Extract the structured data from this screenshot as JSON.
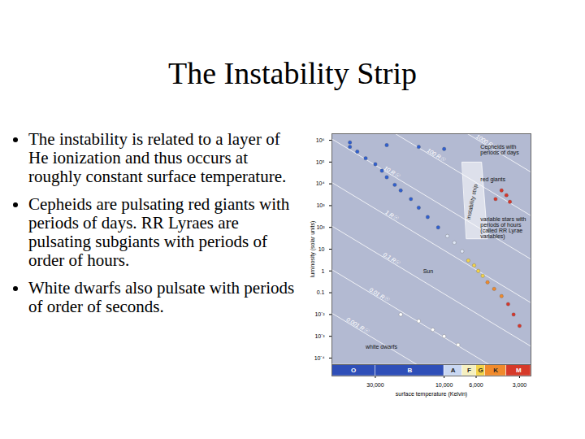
{
  "slide": {
    "title": "The Instability Strip",
    "bullets": [
      "The instability is related to a layer of He ionization and thus occurs at roughly constant surface temperature.",
      "Cepheids are pulsating red giants with periods of days. RR Lyraes are pulsating subgiants with periods of order of hours.",
      "White dwarfs also pulsate with periods of order of seconds."
    ]
  },
  "chart_data": {
    "type": "scatter",
    "log": true,
    "x_label": "surface temperature (Kelvin)",
    "y_label": "luminosity (solar units)",
    "xlim": [
      60000,
      2500
    ],
    "xticks": [
      {
        "value": 30000,
        "label": "30,000"
      },
      {
        "value": 10000,
        "label": "10,000"
      },
      {
        "value": 6000,
        "label": "6,000"
      },
      {
        "value": 3000,
        "label": "3,000"
      }
    ],
    "ylim": [
      5e-05,
      2000000
    ],
    "yticks": [
      {
        "value": 1000000,
        "label": "10⁶"
      },
      {
        "value": 100000,
        "label": "10⁵"
      },
      {
        "value": 10000,
        "label": "10⁴"
      },
      {
        "value": 1000,
        "label": "10³"
      },
      {
        "value": 100,
        "label": "10²"
      },
      10,
      1,
      0.1,
      {
        "value": 0.01,
        "label": "10⁻²"
      },
      {
        "value": 0.001,
        "label": "10⁻³"
      },
      {
        "value": 0.0001,
        "label": "10⁻⁴"
      }
    ],
    "series": [
      {
        "color": "#2f5fd0",
        "x": [
          45000,
          40000,
          35000,
          30000,
          27000,
          25000,
          22000,
          20000,
          17000,
          15000,
          13000,
          11000,
          45000,
          25000,
          15000,
          10000
        ],
        "values": [
          500000,
          300000,
          150000,
          80000,
          40000,
          20000,
          9000,
          5000,
          2000,
          800,
          300,
          100,
          800000,
          600000,
          500000,
          400000
        ]
      },
      {
        "color": "#dfe7f7",
        "x": [
          9500,
          8500,
          7500
        ],
        "values": [
          40,
          20,
          8
        ]
      },
      {
        "color": "#f3d34a",
        "x": [
          6800,
          6200,
          5800,
          5400
        ],
        "values": [
          3,
          1.8,
          1,
          0.6
        ]
      },
      {
        "color": "#f08a2c",
        "x": [
          5000,
          4500,
          4000
        ],
        "values": [
          0.3,
          0.15,
          0.07
        ]
      },
      {
        "color": "#d8352a",
        "x": [
          3600,
          3300,
          3000,
          4000,
          3700,
          3500,
          4400
        ],
        "values": [
          0.03,
          0.01,
          0.003,
          5000,
          3000,
          1500,
          2000
        ]
      },
      {
        "color": "#ffffff",
        "x": [
          20000,
          15000,
          12000,
          10000,
          8000
        ],
        "values": [
          0.01,
          0.005,
          0.002,
          0.001,
          0.0004
        ]
      }
    ],
    "radius_lines": [
      {
        "label": "1000 R☉",
        "x": [
          60000,
          2500
        ],
        "values": [
          11500000000,
          34500
        ]
      },
      {
        "label": "100 R☉",
        "x": [
          60000,
          2500
        ],
        "values": [
          115000000,
          345
        ]
      },
      {
        "label": "10 R☉",
        "x": [
          60000,
          2500
        ],
        "values": [
          1150000,
          3.45
        ]
      },
      {
        "label": "1 R☉",
        "x": [
          60000,
          2500
        ],
        "values": [
          11500,
          0.0345
        ]
      },
      {
        "label": "0.1 R☉",
        "x": [
          60000,
          2500
        ],
        "values": [
          115,
          0.000345
        ]
      },
      {
        "label": "0.01 R☉",
        "x": [
          60000,
          2500
        ],
        "values": [
          1.15,
          3.45e-06
        ]
      },
      {
        "label": "0.001 R☉",
        "x": [
          60000,
          2500
        ],
        "values": [
          0.0115,
          3.45e-08
        ]
      }
    ],
    "instability_strip": {
      "label": "instability strip",
      "x": [
        7500,
        5500,
        5000,
        7000
      ],
      "values": [
        100000,
        100000,
        30,
        30
      ],
      "label_x": 6400,
      "label_y": 1500
    },
    "spectral_classes": [
      {
        "label": "O",
        "color": "#2f4fb8",
        "range": [
          60000,
          30000
        ]
      },
      {
        "label": "B",
        "color": "#2f4fb8",
        "range": [
          30000,
          10000
        ]
      },
      {
        "label": "A",
        "color": "#c9d7f2",
        "range": [
          10000,
          7500
        ]
      },
      {
        "label": "F",
        "color": "#f5f0c0",
        "range": [
          7500,
          6000
        ]
      },
      {
        "label": "G",
        "color": "#f3d34a",
        "range": [
          6000,
          5200
        ]
      },
      {
        "label": "K",
        "color": "#f08a2c",
        "range": [
          5200,
          3700
        ]
      },
      {
        "label": "M",
        "color": "#d63a2a",
        "range": [
          3700,
          2500
        ]
      }
    ],
    "annotations": [
      {
        "text": "Cepheids with periods of days",
        "x": 5600,
        "y": 600000
      },
      {
        "text": "red giants",
        "x": 5600,
        "y": 20000
      },
      {
        "text": "variable stars with periods of hours (called RR Lyrae variables)",
        "x": 5600,
        "y": 300
      },
      {
        "text": "Sun",
        "x": 14000,
        "y": 1.2
      },
      {
        "text": "white dwarfs",
        "x": 35000,
        "y": 0.0004
      }
    ]
  }
}
